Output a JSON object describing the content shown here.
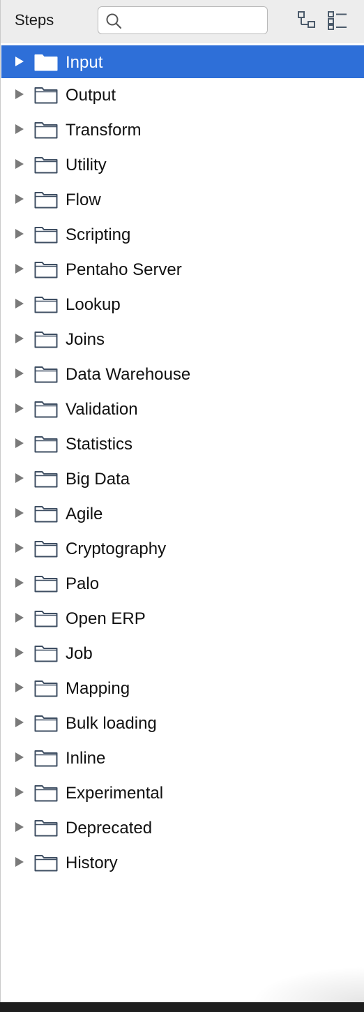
{
  "header": {
    "title": "Steps",
    "search": {
      "value": "",
      "placeholder": ""
    }
  },
  "icons": {
    "search": "search-icon",
    "collapse_all": "collapse-tree-icon",
    "expand_all": "expand-tree-icon",
    "arrow": "triangle-right-icon",
    "folder": "folder-icon"
  },
  "colors": {
    "selected_bg": "#2e6fd8",
    "header_bg": "#ededed"
  },
  "tree": {
    "selected_index": 0,
    "items": [
      {
        "label": "Input"
      },
      {
        "label": "Output"
      },
      {
        "label": "Transform"
      },
      {
        "label": "Utility"
      },
      {
        "label": "Flow"
      },
      {
        "label": "Scripting"
      },
      {
        "label": "Pentaho Server"
      },
      {
        "label": "Lookup"
      },
      {
        "label": "Joins"
      },
      {
        "label": "Data Warehouse"
      },
      {
        "label": "Validation"
      },
      {
        "label": "Statistics"
      },
      {
        "label": "Big Data"
      },
      {
        "label": "Agile"
      },
      {
        "label": "Cryptography"
      },
      {
        "label": "Palo"
      },
      {
        "label": "Open ERP"
      },
      {
        "label": "Job"
      },
      {
        "label": "Mapping"
      },
      {
        "label": "Bulk loading"
      },
      {
        "label": "Inline"
      },
      {
        "label": "Experimental"
      },
      {
        "label": "Deprecated"
      },
      {
        "label": "History"
      }
    ]
  }
}
